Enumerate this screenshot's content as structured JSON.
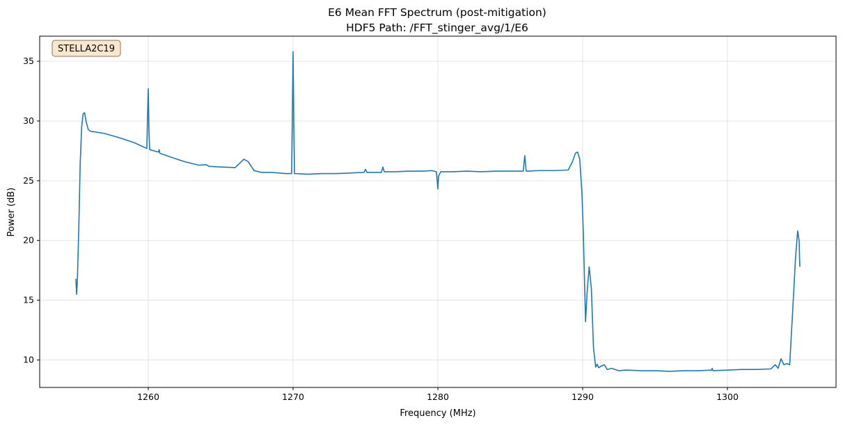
{
  "chart_data": {
    "type": "line",
    "title_line1": "E6 Mean FFT Spectrum (post-mitigation)",
    "title_line2": "HDF5 Path: /FFT_stinger_avg/1/E6",
    "xlabel": "Frequency (MHz)",
    "ylabel": "Power (dB)",
    "badge": "STELLA2C19",
    "xlim": [
      1252.5,
      1307.5
    ],
    "ylim": [
      7.7,
      37.1
    ],
    "xticks": [
      1260,
      1270,
      1280,
      1290,
      1300
    ],
    "yticks": [
      10,
      15,
      20,
      25,
      30,
      35
    ],
    "grid": true,
    "colors": {
      "line": "#1f77b4",
      "badge_fill": "#f7e7cf",
      "badge_border": "#8b7355",
      "grid": "#e3e3e3"
    },
    "series": [
      {
        "points": [
          [
            1255.0,
            16.8
          ],
          [
            1255.05,
            15.5
          ],
          [
            1255.1,
            16.5
          ],
          [
            1255.2,
            21.0
          ],
          [
            1255.3,
            26.5
          ],
          [
            1255.4,
            29.5
          ],
          [
            1255.5,
            30.6
          ],
          [
            1255.6,
            30.7
          ],
          [
            1255.7,
            30.0
          ],
          [
            1255.85,
            29.3
          ],
          [
            1256.0,
            29.15
          ],
          [
            1257.0,
            28.95
          ],
          [
            1258.0,
            28.6
          ],
          [
            1259.0,
            28.2
          ],
          [
            1259.9,
            27.7
          ],
          [
            1259.95,
            30.5
          ],
          [
            1260.0,
            32.7
          ],
          [
            1260.05,
            29.0
          ],
          [
            1260.1,
            27.6
          ],
          [
            1260.7,
            27.4
          ],
          [
            1260.75,
            27.6
          ],
          [
            1260.8,
            27.3
          ],
          [
            1261.5,
            27.0
          ],
          [
            1262.5,
            26.6
          ],
          [
            1263.5,
            26.3
          ],
          [
            1264.0,
            26.35
          ],
          [
            1264.2,
            26.2
          ],
          [
            1265.0,
            26.15
          ],
          [
            1266.0,
            26.1
          ],
          [
            1266.6,
            26.8
          ],
          [
            1266.9,
            26.6
          ],
          [
            1267.3,
            25.85
          ],
          [
            1267.8,
            25.7
          ],
          [
            1268.5,
            25.7
          ],
          [
            1269.5,
            25.6
          ],
          [
            1269.9,
            25.6
          ],
          [
            1269.95,
            30.5
          ],
          [
            1270.0,
            35.8
          ],
          [
            1270.05,
            30.0
          ],
          [
            1270.1,
            25.6
          ],
          [
            1271.0,
            25.55
          ],
          [
            1272.0,
            25.6
          ],
          [
            1273.0,
            25.6
          ],
          [
            1274.0,
            25.65
          ],
          [
            1274.9,
            25.7
          ],
          [
            1275.0,
            25.95
          ],
          [
            1275.1,
            25.7
          ],
          [
            1276.1,
            25.7
          ],
          [
            1276.2,
            26.15
          ],
          [
            1276.3,
            25.75
          ],
          [
            1277.0,
            25.75
          ],
          [
            1278.0,
            25.8
          ],
          [
            1279.0,
            25.8
          ],
          [
            1279.6,
            25.85
          ],
          [
            1279.9,
            25.75
          ],
          [
            1280.0,
            24.3
          ],
          [
            1280.05,
            25.4
          ],
          [
            1280.2,
            25.75
          ],
          [
            1281.0,
            25.75
          ],
          [
            1282.0,
            25.8
          ],
          [
            1283.0,
            25.75
          ],
          [
            1284.0,
            25.8
          ],
          [
            1285.0,
            25.8
          ],
          [
            1285.9,
            25.8
          ],
          [
            1286.0,
            27.1
          ],
          [
            1286.05,
            26.5
          ],
          [
            1286.1,
            25.8
          ],
          [
            1287.0,
            25.85
          ],
          [
            1288.0,
            25.85
          ],
          [
            1289.0,
            25.9
          ],
          [
            1289.3,
            26.6
          ],
          [
            1289.5,
            27.3
          ],
          [
            1289.65,
            27.4
          ],
          [
            1289.8,
            26.8
          ],
          [
            1289.95,
            24.0
          ],
          [
            1290.05,
            20.5
          ],
          [
            1290.1,
            18.0
          ],
          [
            1290.2,
            13.2
          ],
          [
            1290.3,
            15.5
          ],
          [
            1290.45,
            17.8
          ],
          [
            1290.6,
            16.0
          ],
          [
            1290.75,
            11.0
          ],
          [
            1290.9,
            9.4
          ],
          [
            1291.0,
            9.65
          ],
          [
            1291.1,
            9.35
          ],
          [
            1291.3,
            9.5
          ],
          [
            1291.5,
            9.6
          ],
          [
            1291.7,
            9.2
          ],
          [
            1292.0,
            9.3
          ],
          [
            1292.5,
            9.1
          ],
          [
            1293.0,
            9.15
          ],
          [
            1294.0,
            9.1
          ],
          [
            1295.0,
            9.1
          ],
          [
            1296.0,
            9.05
          ],
          [
            1297.0,
            9.1
          ],
          [
            1298.0,
            9.1
          ],
          [
            1298.9,
            9.15
          ],
          [
            1298.95,
            9.3
          ],
          [
            1299.0,
            9.1
          ],
          [
            1300.0,
            9.15
          ],
          [
            1301.0,
            9.2
          ],
          [
            1302.0,
            9.2
          ],
          [
            1303.0,
            9.25
          ],
          [
            1303.3,
            9.6
          ],
          [
            1303.5,
            9.3
          ],
          [
            1303.7,
            10.1
          ],
          [
            1303.9,
            9.6
          ],
          [
            1304.1,
            9.7
          ],
          [
            1304.3,
            9.6
          ],
          [
            1304.5,
            14.0
          ],
          [
            1304.7,
            18.5
          ],
          [
            1304.85,
            20.8
          ],
          [
            1304.95,
            20.0
          ],
          [
            1305.0,
            17.8
          ]
        ]
      }
    ]
  }
}
